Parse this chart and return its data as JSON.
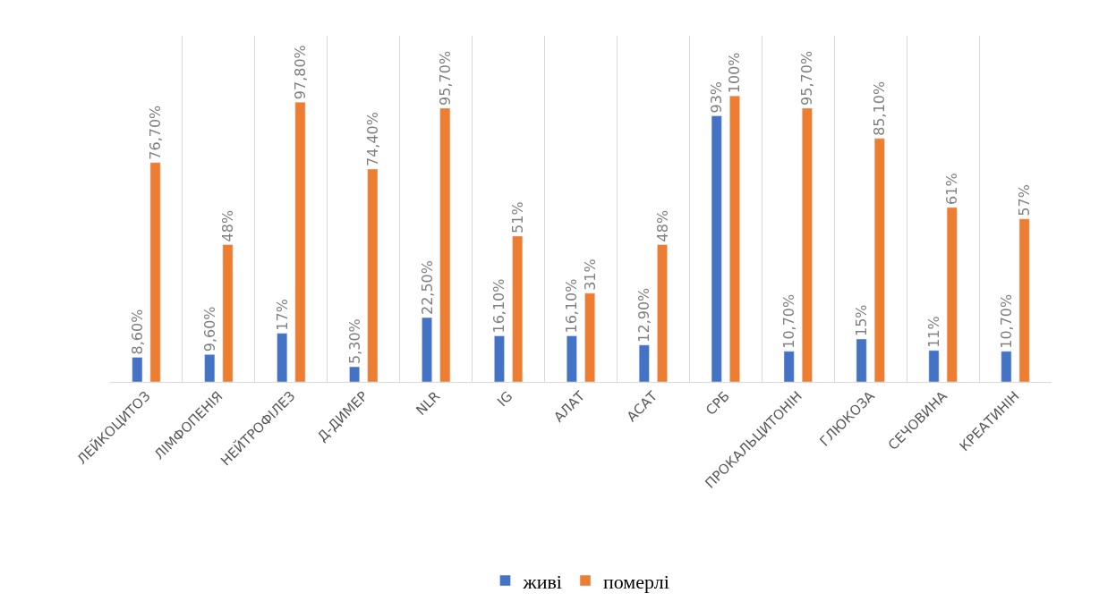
{
  "chart_data": {
    "type": "bar",
    "categories": [
      "ЛЕЙКОЦИТОЗ",
      "ЛІМФОПЕНІЯ",
      "НЕЙТРОФІЛЕЗ",
      "Д-ДИМЕР",
      "NLR",
      "IG",
      "АЛАТ",
      "АСАТ",
      "СРБ",
      "ПРОКАЛЬЦИТОНІН",
      "ГЛЮКОЗА",
      "СЕЧОВИНА",
      "КРЕАТИНІН"
    ],
    "series": [
      {
        "name": "живі",
        "color": "#4472c4",
        "values": [
          8.6,
          9.6,
          17,
          5.3,
          22.5,
          16.1,
          16.1,
          12.9,
          93,
          10.7,
          15,
          11,
          10.7
        ],
        "value_labels": [
          "8,60%",
          "9,60%",
          "17%",
          "5,30%",
          "22,50%",
          "16,10%",
          "16,10%",
          "12,90%",
          "93%",
          "10,70%",
          "15%",
          "11%",
          "10,70%"
        ]
      },
      {
        "name": "померлі",
        "color": "#ed7d31",
        "values": [
          76.7,
          48,
          97.8,
          74.4,
          95.7,
          51,
          31,
          48,
          100,
          95.7,
          85.1,
          61,
          57
        ],
        "value_labels": [
          "76,70%",
          "48%",
          "97,80%",
          "74,40%",
          "95,70%",
          "51%",
          "31%",
          "48%",
          "100%",
          "95,70%",
          "85,10%",
          "61%",
          "57%"
        ]
      }
    ],
    "grid": "x",
    "legend": "bottom"
  }
}
